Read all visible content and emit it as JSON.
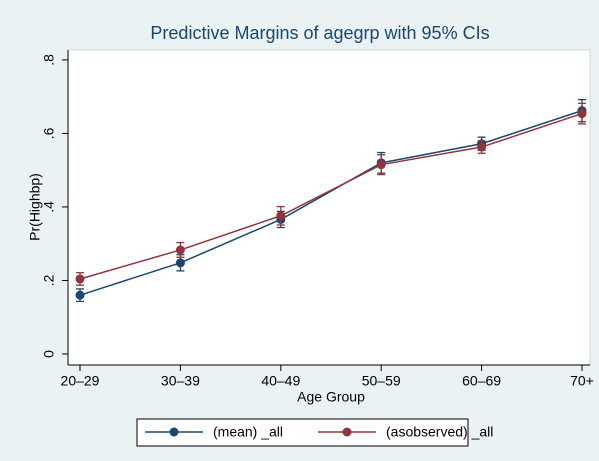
{
  "chart_data": {
    "type": "line",
    "title": "Predictive Margins of agegrp with 95% CIs",
    "x_label": "Age Group",
    "y_label": "Pr(Highbp)",
    "categories": [
      "20–29",
      "30–39",
      "40–49",
      "50–59",
      "60–69",
      "70+"
    ],
    "series": [
      {
        "name": "(mean) _all",
        "color": "#1a476f",
        "values": [
          0.16,
          0.248,
          0.366,
          0.52,
          0.572,
          0.662
        ],
        "errors": [
          0.017,
          0.022,
          0.022,
          0.028,
          0.018,
          0.03
        ]
      },
      {
        "name": "(asobserved) _all",
        "color": "#90353b",
        "values": [
          0.204,
          0.283,
          0.376,
          0.515,
          0.563,
          0.654
        ],
        "errors": [
          0.017,
          0.02,
          0.025,
          0.027,
          0.017,
          0.028
        ]
      }
    ],
    "ylim": [
      -0.03,
      0.827
    ],
    "yticks": [
      0,
      {
        "value": 0.2,
        "label": ".2"
      },
      {
        "value": 0.4,
        "label": ".4"
      },
      {
        "value": 0.6,
        "label": ".6"
      },
      {
        "value": 0.8,
        "label": ".8"
      }
    ],
    "grid": false,
    "legend": "bottom"
  }
}
